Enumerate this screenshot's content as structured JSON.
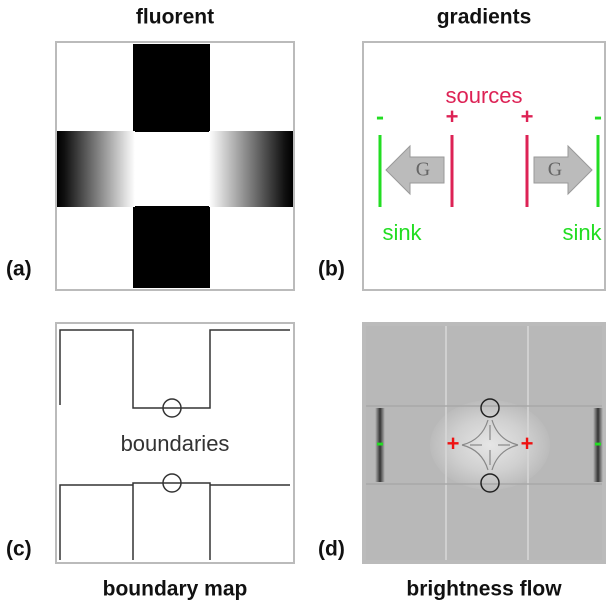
{
  "titles": {
    "a": "fluorent",
    "b": "gradients",
    "c": "boundary map",
    "d": "brightness flow"
  },
  "panel_labels": [
    "(a)",
    "(b)",
    "(c)",
    "(d)"
  ],
  "gradients": {
    "label": "sources",
    "plus": [
      "+",
      "+"
    ],
    "minus": [
      "-",
      "-"
    ],
    "arrows": [
      "G",
      "G"
    ],
    "sinks": [
      "sink",
      "sink"
    ]
  },
  "boundary": {
    "label": "boundaries"
  },
  "flow": {
    "plus": [
      "+",
      "+"
    ],
    "minus": [
      "-",
      "-"
    ]
  }
}
